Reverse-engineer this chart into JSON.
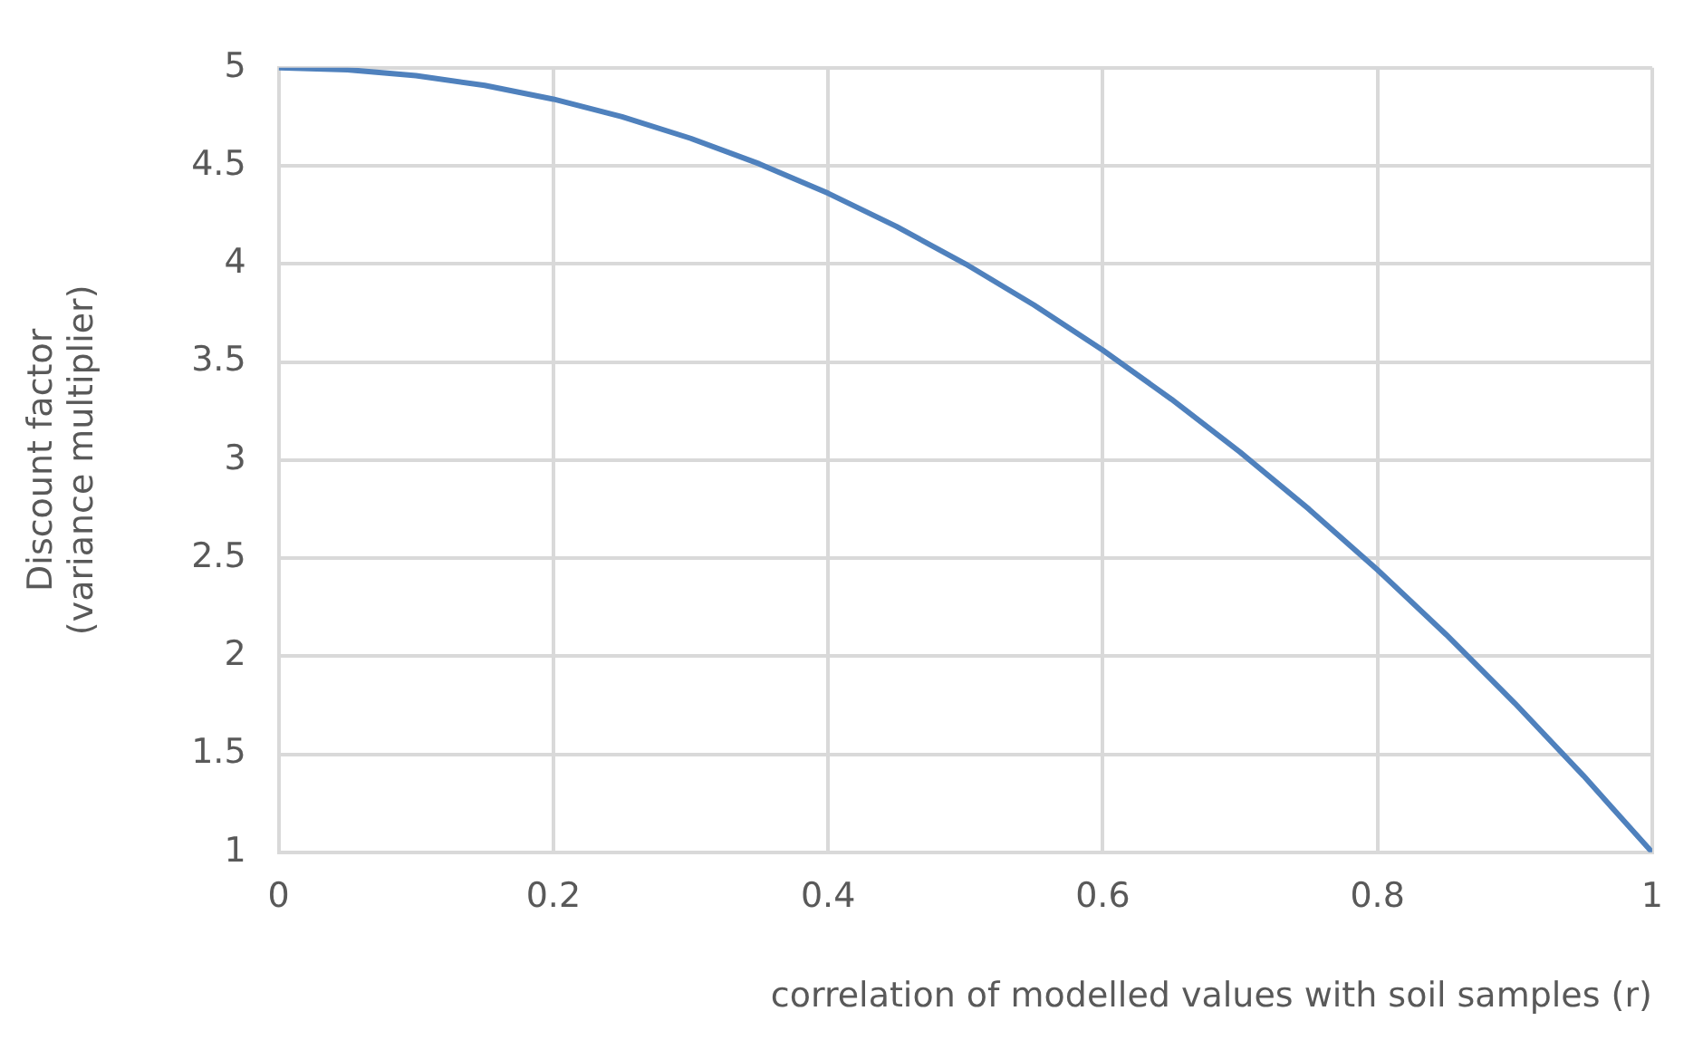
{
  "chart_data": {
    "type": "line",
    "xlabel": "correlation of modelled values with soil samples (r)",
    "ylabel": "Discount factor (variance multiplier)",
    "x": [
      0,
      0.05,
      0.1,
      0.15,
      0.2,
      0.25,
      0.3,
      0.35,
      0.4,
      0.45,
      0.5,
      0.55,
      0.6,
      0.65,
      0.7,
      0.75,
      0.8,
      0.85,
      0.9,
      0.95,
      1
    ],
    "series": [
      {
        "color": "#4f81bd",
        "values": [
          5,
          4.99,
          4.96,
          4.91,
          4.84,
          4.75,
          4.64,
          4.51,
          4.36,
          4.19,
          4.0,
          3.79,
          3.56,
          3.31,
          3.04,
          2.75,
          2.44,
          2.11,
          1.76,
          1.39,
          1.0
        ]
      }
    ],
    "xlim": [
      0,
      1
    ],
    "xticks": [
      0,
      0.2,
      0.4,
      0.6,
      0.8,
      1
    ],
    "ylim": [
      1,
      5
    ],
    "yticks": [
      1,
      1.5,
      2,
      2.5,
      3,
      3.5,
      4,
      4.5,
      5
    ],
    "grid": true,
    "legend": false,
    "marker": "none",
    "line_style": "solid"
  }
}
